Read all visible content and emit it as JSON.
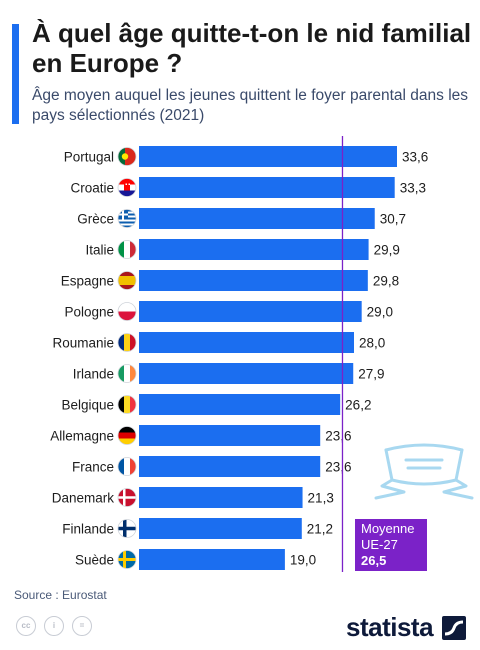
{
  "header": {
    "title": "À quel âge quitte-t-on le nid familial en Europe ?",
    "subtitle": "Âge moyen auquel les jeunes quittent le foyer parental dans les pays sélectionnés (2021)"
  },
  "chart_data": {
    "type": "bar",
    "orientation": "horizontal",
    "title": "À quel âge quitte-t-on le nid familial en Europe ?",
    "subtitle": "Âge moyen auquel les jeunes quittent le foyer parental dans les pays sélectionnés (2021)",
    "categories": [
      "Portugal",
      "Croatie",
      "Grèce",
      "Italie",
      "Espagne",
      "Pologne",
      "Roumanie",
      "Irlande",
      "Belgique",
      "Allemagne",
      "France",
      "Danemark",
      "Finlande",
      "Suède"
    ],
    "values": [
      33.6,
      33.3,
      30.7,
      29.9,
      29.8,
      29.0,
      28.0,
      27.9,
      26.2,
      23.6,
      23.6,
      21.3,
      21.2,
      19.0
    ],
    "value_labels": [
      "33,6",
      "33,3",
      "30,7",
      "29,9",
      "29,8",
      "29,0",
      "28,0",
      "27,9",
      "26,2",
      "23,6",
      "23,6",
      "21,3",
      "21,2",
      "19,0"
    ],
    "flags": [
      "portugal",
      "croatia",
      "greece",
      "italy",
      "spain",
      "poland",
      "romania",
      "ireland",
      "belgium",
      "germany",
      "france",
      "denmark",
      "finland",
      "sweden"
    ],
    "xlim": [
      0,
      33.6
    ],
    "bar_color": "#1b6ef0",
    "reference_line": {
      "value": 26.5,
      "label_line1": "Moyenne",
      "label_line2": "UE-27",
      "value_label": "26,5",
      "color": "#7b22c8"
    },
    "grid": false,
    "legend": "none"
  },
  "footer": {
    "source": "Source : Eurostat",
    "brand": "statista"
  },
  "colors": {
    "accent": "#1b6ef0",
    "purple": "#7b22c8",
    "decor": "#a8d8f0"
  }
}
